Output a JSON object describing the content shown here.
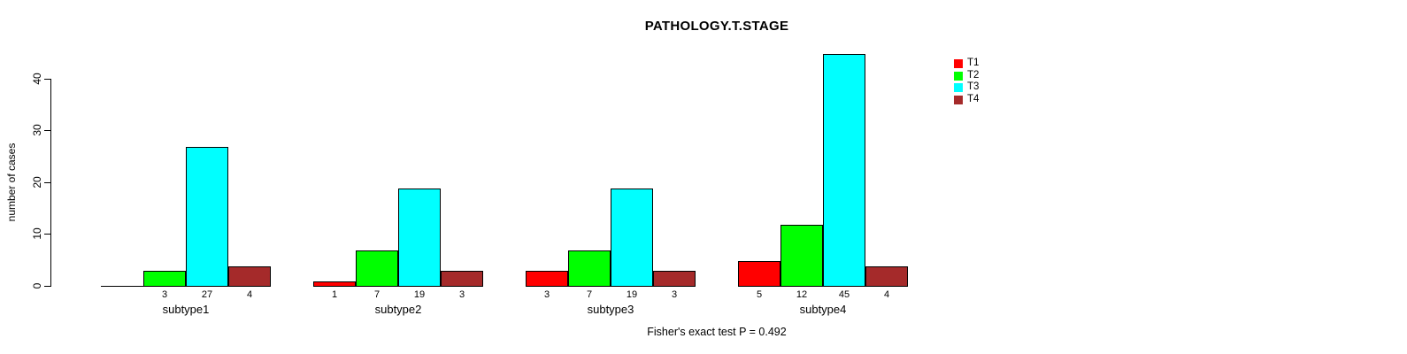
{
  "title": "PATHOLOGY.T.STAGE",
  "ylabel": "number of cases",
  "footer": "Fisher's exact test P = 0.492",
  "legend": {
    "position": "top-right",
    "items": [
      {
        "label": "T1",
        "color": "#FF0000"
      },
      {
        "label": "T2",
        "color": "#00FF00"
      },
      {
        "label": "T3",
        "color": "#00FFFF"
      },
      {
        "label": "T4",
        "color": "#A52A2A"
      }
    ]
  },
  "chart_data": {
    "type": "bar",
    "grouped": true,
    "title": "PATHOLOGY.T.STAGE",
    "xlabel": "",
    "ylabel": "number of cases",
    "categories": [
      "subtype1",
      "subtype2",
      "subtype3",
      "subtype4"
    ],
    "series": [
      {
        "name": "T1",
        "color": "#FF0000",
        "values": [
          0,
          1,
          3,
          5
        ]
      },
      {
        "name": "T2",
        "color": "#00FF00",
        "values": [
          3,
          7,
          7,
          12
        ]
      },
      {
        "name": "T3",
        "color": "#00FFFF",
        "values": [
          27,
          19,
          19,
          45
        ]
      },
      {
        "name": "T4",
        "color": "#A52A2A",
        "values": [
          4,
          3,
          3,
          4
        ]
      }
    ],
    "yticks": [
      0,
      10,
      20,
      30,
      40
    ],
    "ylim": [
      0,
      45
    ],
    "grid": false,
    "legend_position": "top-right",
    "bar_value_labels": "values shown under each bar, zeros omitted",
    "annotation": "Fisher's exact test P = 0.492"
  }
}
